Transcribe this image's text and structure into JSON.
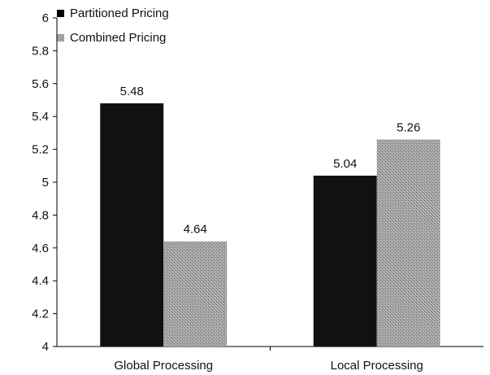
{
  "chart_data": {
    "type": "bar",
    "categories": [
      "Global Processing",
      "Local Processing"
    ],
    "series": [
      {
        "name": "Partitioned Pricing",
        "values": [
          5.48,
          5.04
        ],
        "color": "#111111"
      },
      {
        "name": "Combined Pricing",
        "values": [
          4.64,
          5.26
        ],
        "color": "#9a9a9a"
      }
    ],
    "data_labels": [
      [
        "5.48",
        "5.04"
      ],
      [
        "4.64",
        "5.26"
      ]
    ],
    "yticks": [
      "4",
      "4.2",
      "4.4",
      "4.6",
      "4.8",
      "5",
      "5.2",
      "5.4",
      "5.6",
      "5.8",
      "6"
    ],
    "ylim": [
      4,
      6
    ],
    "title": "",
    "xlabel": "",
    "ylabel": "",
    "legend_position": "top-left",
    "grid": false
  }
}
